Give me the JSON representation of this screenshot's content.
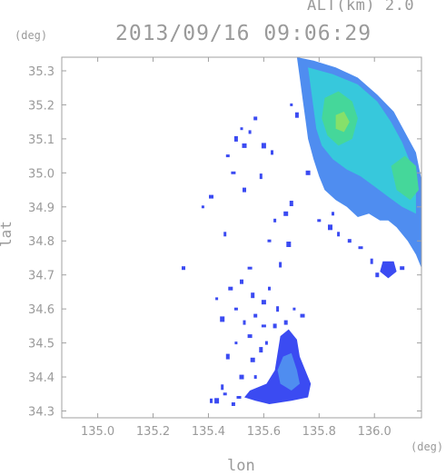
{
  "header": {
    "altitude_label": "ALT(km) 2.0",
    "timestamp": "2013/09/16 09:06:29"
  },
  "axes": {
    "lat_unit": "(deg)",
    "lon_unit": "(deg)",
    "ylabel": "lat",
    "xlabel": "lon",
    "x_ticks": [
      135.0,
      135.2,
      135.4,
      135.6,
      135.8,
      136.0
    ],
    "x_tick_labels": [
      "135.0",
      "135.2",
      "135.4",
      "135.6",
      "135.8",
      "136.0"
    ],
    "y_ticks": [
      34.3,
      34.4,
      34.5,
      34.6,
      34.7,
      34.8,
      34.9,
      35.0,
      35.1,
      35.2,
      35.3
    ],
    "y_tick_labels": [
      "34.3",
      "34.4",
      "34.5",
      "34.6",
      "34.7",
      "34.8",
      "34.9",
      "35.0",
      "35.1",
      "35.2",
      "35.3"
    ],
    "x_range": [
      134.87,
      136.17
    ],
    "y_range": [
      34.28,
      35.34
    ]
  },
  "colors": {
    "frame": "#a0a0a0",
    "text": "#9a9a9a",
    "low": "#3b4bf2",
    "mid": "#4f8df0",
    "midhigh": "#37c8dc",
    "high": "#45d79a",
    "peak": "#86e06a"
  },
  "echo_regions": [
    {
      "name": "northeast-arc",
      "level": "mid",
      "polygon": [
        [
          135.72,
          35.34
        ],
        [
          135.78,
          35.33
        ],
        [
          135.86,
          35.31
        ],
        [
          135.94,
          35.28
        ],
        [
          136.01,
          35.23
        ],
        [
          136.07,
          35.18
        ],
        [
          136.11,
          35.12
        ],
        [
          136.15,
          35.06
        ],
        [
          136.17,
          34.98
        ],
        [
          136.17,
          34.72
        ],
        [
          136.15,
          34.76
        ],
        [
          136.12,
          34.8
        ],
        [
          136.08,
          34.84
        ],
        [
          136.05,
          34.86
        ],
        [
          136.02,
          34.86
        ],
        [
          135.98,
          34.88
        ],
        [
          135.94,
          34.87
        ],
        [
          135.9,
          34.9
        ],
        [
          135.86,
          34.92
        ],
        [
          135.82,
          34.95
        ],
        [
          135.8,
          34.99
        ],
        [
          135.78,
          35.04
        ],
        [
          135.76,
          35.1
        ],
        [
          135.75,
          35.16
        ],
        [
          135.74,
          35.22
        ],
        [
          135.73,
          35.28
        ]
      ]
    },
    {
      "name": "northeast-core",
      "level": "midhigh",
      "polygon": [
        [
          135.76,
          35.31
        ],
        [
          135.85,
          35.29
        ],
        [
          135.94,
          35.26
        ],
        [
          136.01,
          35.21
        ],
        [
          136.06,
          35.15
        ],
        [
          136.1,
          35.09
        ],
        [
          136.13,
          35.03
        ],
        [
          136.15,
          34.97
        ],
        [
          136.15,
          34.88
        ],
        [
          136.1,
          34.9
        ],
        [
          136.05,
          34.93
        ],
        [
          136.0,
          34.96
        ],
        [
          135.95,
          34.99
        ],
        [
          135.9,
          35.01
        ],
        [
          135.85,
          35.04
        ],
        [
          135.81,
          35.08
        ],
        [
          135.79,
          35.13
        ],
        [
          135.78,
          35.19
        ],
        [
          135.77,
          35.25
        ]
      ]
    },
    {
      "name": "northeast-peak-1",
      "level": "high",
      "polygon": [
        [
          135.82,
          35.22
        ],
        [
          135.87,
          35.24
        ],
        [
          135.92,
          35.21
        ],
        [
          135.94,
          35.16
        ],
        [
          135.92,
          35.1
        ],
        [
          135.87,
          35.08
        ],
        [
          135.83,
          35.11
        ],
        [
          135.81,
          35.16
        ]
      ]
    },
    {
      "name": "northeast-peak-2",
      "level": "high",
      "polygon": [
        [
          136.06,
          35.02
        ],
        [
          136.11,
          35.05
        ],
        [
          136.15,
          35.02
        ],
        [
          136.16,
          34.95
        ],
        [
          136.13,
          34.92
        ],
        [
          136.08,
          34.95
        ]
      ]
    },
    {
      "name": "northeast-peak-center",
      "level": "peak",
      "polygon": [
        [
          135.86,
          35.17
        ],
        [
          135.89,
          35.18
        ],
        [
          135.91,
          35.15
        ],
        [
          135.89,
          35.12
        ],
        [
          135.86,
          35.13
        ]
      ]
    },
    {
      "name": "south-cell",
      "level": "low",
      "polygon": [
        [
          135.66,
          34.52
        ],
        [
          135.69,
          34.54
        ],
        [
          135.72,
          34.51
        ],
        [
          135.73,
          34.46
        ],
        [
          135.75,
          34.42
        ],
        [
          135.77,
          34.38
        ],
        [
          135.76,
          34.34
        ],
        [
          135.7,
          34.33
        ],
        [
          135.62,
          34.32
        ],
        [
          135.57,
          34.33
        ],
        [
          135.53,
          34.34
        ],
        [
          135.55,
          34.36
        ],
        [
          135.61,
          34.38
        ],
        [
          135.64,
          34.42
        ],
        [
          135.65,
          34.47
        ]
      ]
    },
    {
      "name": "south-cell-core",
      "level": "mid",
      "polygon": [
        [
          135.67,
          34.46
        ],
        [
          135.7,
          34.47
        ],
        [
          135.72,
          34.42
        ],
        [
          135.73,
          34.38
        ],
        [
          135.7,
          34.36
        ],
        [
          135.66,
          34.38
        ],
        [
          135.65,
          34.42
        ]
      ]
    },
    {
      "name": "east-small-cell",
      "level": "low",
      "polygon": [
        [
          136.03,
          34.74
        ],
        [
          136.07,
          34.74
        ],
        [
          136.08,
          34.71
        ],
        [
          136.05,
          34.69
        ],
        [
          136.02,
          34.71
        ]
      ]
    }
  ],
  "echo_specks": [
    [
      135.52,
      35.13
    ],
    [
      135.5,
      35.1
    ],
    [
      135.53,
      35.08
    ],
    [
      135.55,
      35.12
    ],
    [
      135.47,
      35.05
    ],
    [
      135.6,
      35.08
    ],
    [
      135.63,
      35.06
    ],
    [
      135.57,
      35.16
    ],
    [
      135.49,
      35.0
    ],
    [
      135.59,
      34.99
    ],
    [
      135.53,
      34.95
    ],
    [
      135.41,
      34.93
    ],
    [
      135.38,
      34.9
    ],
    [
      135.7,
      34.91
    ],
    [
      135.68,
      34.88
    ],
    [
      135.64,
      34.86
    ],
    [
      135.62,
      34.8
    ],
    [
      135.69,
      34.79
    ],
    [
      135.46,
      34.82
    ],
    [
      135.31,
      34.72
    ],
    [
      135.55,
      34.72
    ],
    [
      135.66,
      34.73
    ],
    [
      135.52,
      34.68
    ],
    [
      135.48,
      34.66
    ],
    [
      135.43,
      34.63
    ],
    [
      135.56,
      34.64
    ],
    [
      135.6,
      34.62
    ],
    [
      135.62,
      34.66
    ],
    [
      135.5,
      34.6
    ],
    [
      135.45,
      34.57
    ],
    [
      135.53,
      34.56
    ],
    [
      135.57,
      34.58
    ],
    [
      135.6,
      34.55
    ],
    [
      135.65,
      34.6
    ],
    [
      135.64,
      34.55
    ],
    [
      135.55,
      34.52
    ],
    [
      135.5,
      34.5
    ],
    [
      135.59,
      34.48
    ],
    [
      135.56,
      34.45
    ],
    [
      135.61,
      34.5
    ],
    [
      135.8,
      34.86
    ],
    [
      135.84,
      34.84
    ],
    [
      135.87,
      34.82
    ],
    [
      135.91,
      34.8
    ],
    [
      135.95,
      34.78
    ],
    [
      135.99,
      34.74
    ],
    [
      136.01,
      34.7
    ],
    [
      136.1,
      34.72
    ],
    [
      135.7,
      35.2
    ],
    [
      135.72,
      35.17
    ],
    [
      135.76,
      35.0
    ],
    [
      135.85,
      34.88
    ],
    [
      135.46,
      34.35
    ],
    [
      135.43,
      34.33
    ],
    [
      135.41,
      34.33
    ],
    [
      135.49,
      34.32
    ],
    [
      135.51,
      34.34
    ],
    [
      135.45,
      34.37
    ],
    [
      135.68,
      34.56
    ],
    [
      135.74,
      34.58
    ],
    [
      135.71,
      34.6
    ],
    [
      135.47,
      34.46
    ],
    [
      135.52,
      34.4
    ],
    [
      135.57,
      34.4
    ]
  ]
}
